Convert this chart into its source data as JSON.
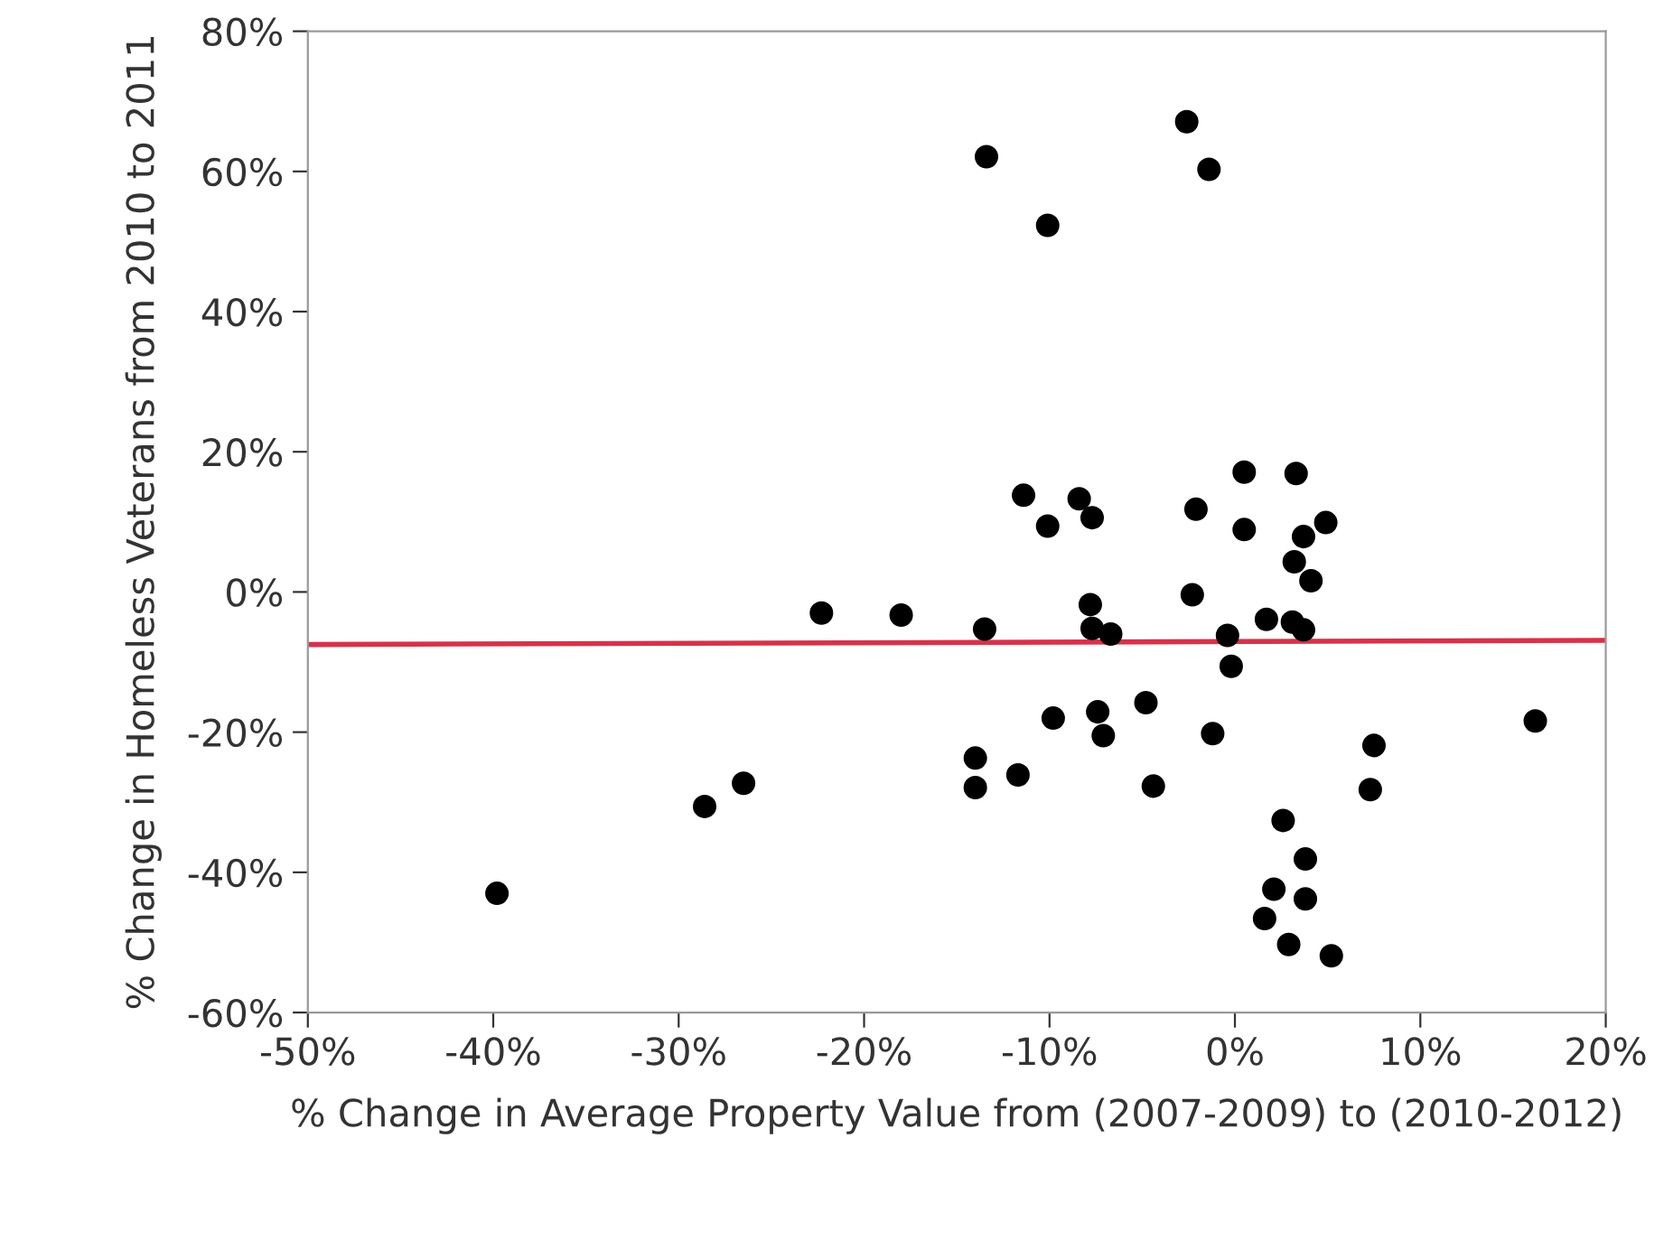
{
  "chart_data": {
    "type": "scatter",
    "xlabel": "% Change in Average Property Value from (2007-2009) to (2010-2012)",
    "ylabel": "% Change in Homeless Veterans from 2010 to 2011",
    "xlim": [
      -50,
      20
    ],
    "ylim": [
      -60,
      80
    ],
    "xticks": [
      {
        "value": -50,
        "label": "-50%"
      },
      {
        "value": -40,
        "label": "-40%"
      },
      {
        "value": -30,
        "label": "-30%"
      },
      {
        "value": -20,
        "label": "-20%"
      },
      {
        "value": -10,
        "label": "-10%"
      },
      {
        "value": 0,
        "label": "0%"
      },
      {
        "value": 10,
        "label": "10%"
      },
      {
        "value": 20,
        "label": "20%"
      }
    ],
    "yticks": [
      {
        "value": -60,
        "label": "-60%"
      },
      {
        "value": -40,
        "label": "-40%"
      },
      {
        "value": -20,
        "label": "-20%"
      },
      {
        "value": 0,
        "label": "0%"
      },
      {
        "value": 20,
        "label": "20%"
      },
      {
        "value": 40,
        "label": "40%"
      },
      {
        "value": 60,
        "label": "60%"
      },
      {
        "value": 80,
        "label": "80%"
      }
    ],
    "grid": false,
    "legend": false,
    "marker": "circle",
    "series": [
      {
        "color": "#000000",
        "x": [
          -39.8,
          -28.6,
          -26.5,
          -22.3,
          -18.0,
          -13.4,
          -2.6,
          -1.4,
          -10.1,
          0.5,
          3.3,
          -11.4,
          -8.4,
          -10.1,
          -7.7,
          -2.1,
          0.5,
          4.9,
          3.7,
          3.2,
          4.1,
          -2.3,
          -7.8,
          -13.5,
          -7.7,
          -6.7,
          -0.4,
          1.7,
          3.1,
          3.7,
          -0.2,
          -4.8,
          -9.8,
          -7.4,
          -7.1,
          -1.2,
          16.2,
          -14.0,
          -11.7,
          -14.0,
          -4.4,
          7.5,
          7.3,
          2.6,
          3.8,
          2.1,
          3.8,
          1.6,
          2.9,
          5.2
        ],
        "values": [
          -43.0,
          -30.6,
          -27.3,
          -3.0,
          -3.3,
          62.1,
          67.1,
          60.3,
          52.3,
          17.1,
          16.9,
          13.8,
          13.3,
          9.4,
          10.6,
          11.8,
          8.9,
          9.9,
          7.9,
          4.3,
          1.6,
          -0.4,
          -1.8,
          -5.3,
          -5.2,
          -6.0,
          -6.2,
          -3.9,
          -4.3,
          -5.4,
          -10.6,
          -15.8,
          -18.0,
          -17.1,
          -20.5,
          -20.2,
          -18.4,
          -23.7,
          -26.1,
          -27.9,
          -27.7,
          -21.9,
          -28.2,
          -32.6,
          -38.1,
          -42.4,
          -43.8,
          -46.6,
          -50.3,
          -51.9
        ]
      },
      {
        "type": "line",
        "color": "#d6334a",
        "marker": "none",
        "line_style": "solid",
        "x": [
          -50,
          20
        ],
        "values": [
          -7.5,
          -6.9
        ]
      }
    ]
  }
}
